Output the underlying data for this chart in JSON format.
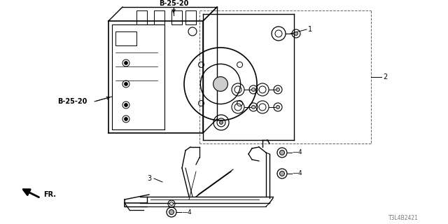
{
  "bg_color": "#ffffff",
  "part_number": "T3L4B2421",
  "labels": {
    "b25_20_top": "B-25-20",
    "b25_20_left": "B-25-20",
    "label1": "1",
    "label2": "2",
    "label3": "3",
    "label4": "4",
    "fr_label": "FR."
  },
  "line_color": "#000000",
  "text_color": "#000000",
  "gray": "#888888",
  "darkgray": "#555555"
}
